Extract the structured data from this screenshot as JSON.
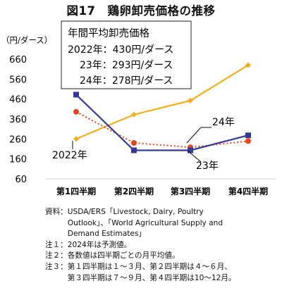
{
  "title": "図17　鶏卵卸売価格の推移",
  "chart_data": {
    "type": "line",
    "ylabel": "（円/ダース）",
    "xlabel": "",
    "ylim": [
      60,
      660
    ],
    "yticks": [
      60,
      160,
      260,
      360,
      460,
      560,
      660
    ],
    "categories": [
      "第1四半期",
      "第2四半期",
      "第3四半期",
      "第4四半期"
    ],
    "grid": false,
    "series": [
      {
        "name": "2022年",
        "color": "#f5ac19",
        "marker": "diamond",
        "dash": "solid",
        "values": [
          260,
          382,
          452,
          630
        ]
      },
      {
        "name": "23年",
        "color": "#34399a",
        "marker": "square",
        "dash": "solid",
        "values": [
          482,
          203,
          203,
          278
        ]
      },
      {
        "name": "24年",
        "color": "#e8441c",
        "marker": "circle",
        "dash": "dotted",
        "values": [
          396,
          240,
          218,
          249
        ]
      }
    ],
    "inset_box": {
      "heading": "年間平均卸売価格",
      "lines": [
        "2022年：430円/ダース",
        "23年：293円/ダース",
        "24年：278円/ダース"
      ]
    }
  },
  "notes": [
    {
      "key": "資料：",
      "lines": [
        "USDA/ERS「Livestock, Dairy, Poultry",
        "Outlook」、「World Agricultural Supply and",
        "Demand Estimates」"
      ]
    },
    {
      "key": "注１：",
      "lines": [
        "2024年は予測値。"
      ]
    },
    {
      "key": "注２：",
      "lines": [
        "各数値は四半期ごとの月平均値。"
      ]
    },
    {
      "key": "注３：",
      "lines": [
        "第１四半期は１～３月、第２四半期は４～６月、",
        "第３四半期は７～９月、第４四半期は10～12月。"
      ]
    }
  ]
}
